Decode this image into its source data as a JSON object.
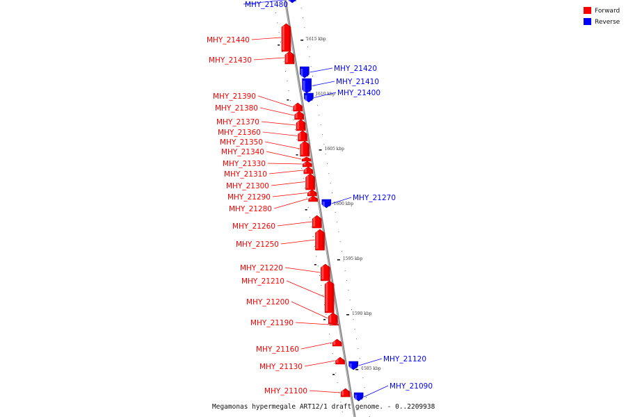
{
  "caption": "Megamonas hypermegale ART12/1 draft genome. - 0..2209938",
  "legend": [
    {
      "label": "Forward",
      "color": "#ff0000"
    },
    {
      "label": "Reverse",
      "color": "#0000ff"
    }
  ],
  "ticks": [
    {
      "label": "1615 kbp"
    },
    {
      "label": "1610 kbp"
    },
    {
      "label": "1605 kbp"
    },
    {
      "label": "1600 kbp"
    },
    {
      "label": "1595 kbp"
    },
    {
      "label": "1590 kbp"
    },
    {
      "label": "1585 kbp"
    }
  ],
  "genes": [
    {
      "name": "MHY_21480",
      "strand": "reverse"
    },
    {
      "name": "MHY_21440",
      "strand": "forward"
    },
    {
      "name": "MHY_21430",
      "strand": "forward"
    },
    {
      "name": "MHY_21420",
      "strand": "reverse"
    },
    {
      "name": "MHY_21410",
      "strand": "reverse"
    },
    {
      "name": "MHY_21400",
      "strand": "reverse"
    },
    {
      "name": "MHY_21390",
      "strand": "forward"
    },
    {
      "name": "MHY_21380",
      "strand": "forward"
    },
    {
      "name": "MHY_21370",
      "strand": "forward"
    },
    {
      "name": "MHY_21360",
      "strand": "forward"
    },
    {
      "name": "MHY_21350",
      "strand": "forward"
    },
    {
      "name": "MHY_21340",
      "strand": "forward"
    },
    {
      "name": "MHY_21330",
      "strand": "forward"
    },
    {
      "name": "MHY_21310",
      "strand": "forward"
    },
    {
      "name": "MHY_21300",
      "strand": "forward"
    },
    {
      "name": "MHY_21290",
      "strand": "forward"
    },
    {
      "name": "MHY_21280",
      "strand": "forward"
    },
    {
      "name": "MHY_21270",
      "strand": "reverse"
    },
    {
      "name": "MHY_21260",
      "strand": "forward"
    },
    {
      "name": "MHY_21250",
      "strand": "forward"
    },
    {
      "name": "MHY_21220",
      "strand": "forward"
    },
    {
      "name": "MHY_21210",
      "strand": "forward"
    },
    {
      "name": "MHY_21200",
      "strand": "forward"
    },
    {
      "name": "MHY_21190",
      "strand": "forward"
    },
    {
      "name": "MHY_21160",
      "strand": "forward"
    },
    {
      "name": "MHY_21130",
      "strand": "forward"
    },
    {
      "name": "MHY_21120",
      "strand": "reverse"
    },
    {
      "name": "MHY_21100",
      "strand": "forward"
    },
    {
      "name": "MHY_21090",
      "strand": "reverse"
    }
  ]
}
